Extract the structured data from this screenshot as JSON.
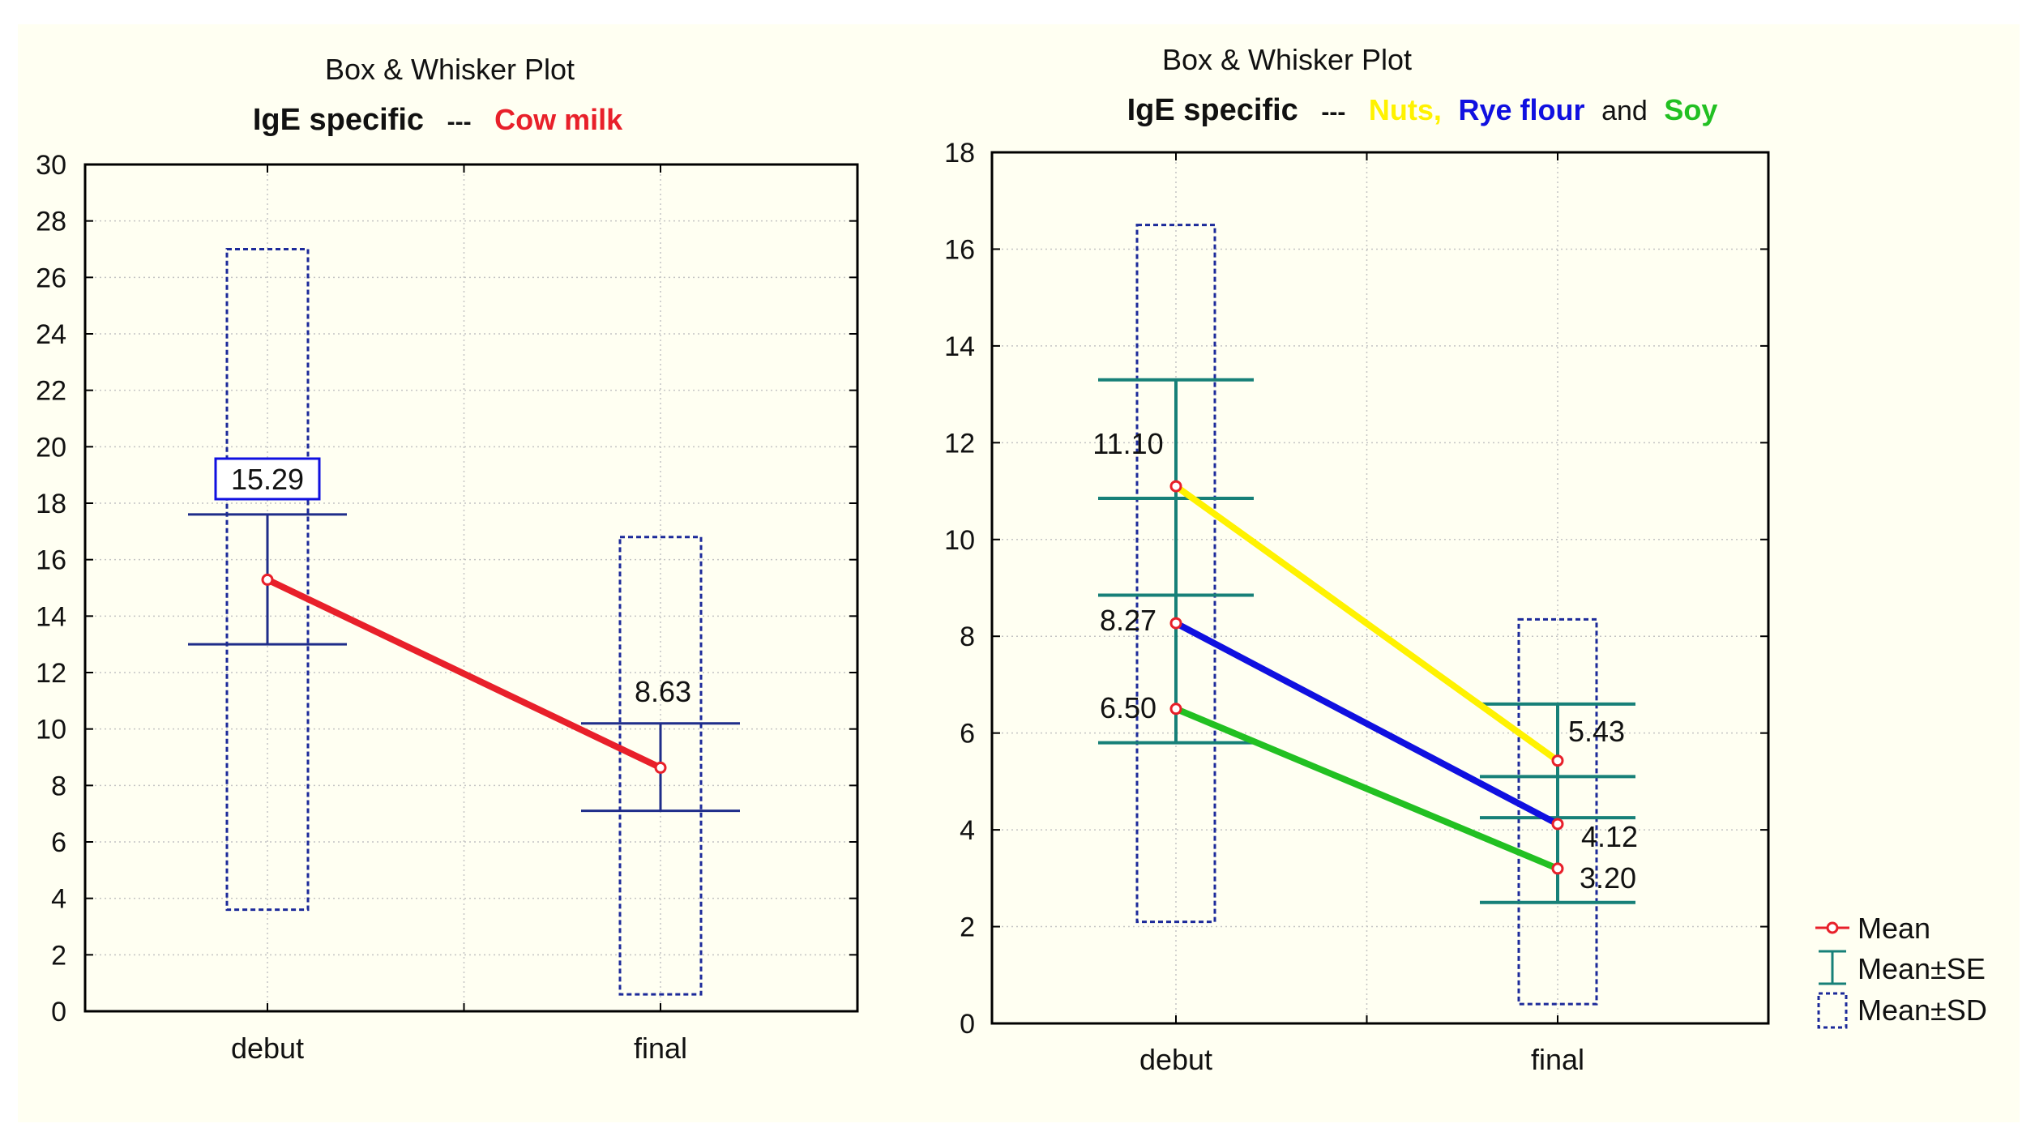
{
  "legend": {
    "mean": "Mean",
    "se": "Mean±SE",
    "sd": "Mean±SD"
  },
  "colors": {
    "background": "#fffff2",
    "frame": "#000000",
    "grid": "#c4c4c4",
    "navy": "#1f2d8a",
    "teal": "#178078",
    "sd_box": "#1c2a9a",
    "cow_milk": "#e8202a",
    "nuts": "#fff200",
    "rye_flour": "#1010e0",
    "soy": "#22c022",
    "mean_marker": "#e8202a"
  },
  "chart_data": [
    {
      "type": "box",
      "title": "Box & Whisker Plot",
      "subtitle": {
        "prefix": "IgE specific",
        "separator": "---",
        "segments": [
          {
            "text": "Cow milk",
            "color": "#e8202a"
          }
        ]
      },
      "categories": [
        "debut",
        "final"
      ],
      "ylim": [
        0,
        30
      ],
      "yticks": [
        0,
        2,
        4,
        6,
        8,
        10,
        12,
        14,
        16,
        18,
        20,
        22,
        24,
        26,
        28,
        30
      ],
      "grid": true,
      "series": [
        {
          "name": "Cow milk",
          "color": "#e8202a",
          "mean": [
            15.29,
            8.63
          ],
          "se_low": [
            13.0,
            7.1
          ],
          "se_high": [
            17.6,
            10.2
          ],
          "sd_low": [
            3.6,
            0.6
          ],
          "sd_high": [
            27.0,
            16.8
          ],
          "labels": [
            "15.29",
            "8.63"
          ]
        }
      ]
    },
    {
      "type": "box",
      "title": "Box & Whisker Plot",
      "subtitle": {
        "prefix": "IgE specific",
        "separator": "---",
        "segments": [
          {
            "text": "Nuts,",
            "color": "#fff200"
          },
          {
            "text": "Rye flour",
            "color": "#1010e0"
          },
          {
            "text": "and",
            "color": "#111111"
          },
          {
            "text": "Soy",
            "color": "#22c022"
          }
        ]
      },
      "categories": [
        "debut",
        "final"
      ],
      "ylim": [
        0,
        18
      ],
      "yticks": [
        0,
        2,
        4,
        6,
        8,
        10,
        12,
        14,
        16,
        18
      ],
      "grid": true,
      "legend_position": "bottom-right",
      "series": [
        {
          "name": "Nuts",
          "color": "#fff200",
          "mean": [
            11.1,
            5.43
          ],
          "labels": [
            "11.10",
            "5.43"
          ]
        },
        {
          "name": "Rye flour",
          "color": "#1010e0",
          "mean": [
            8.27,
            4.12
          ],
          "labels": [
            "8.27",
            "4.12"
          ]
        },
        {
          "name": "Soy",
          "color": "#22c022",
          "mean": [
            6.5,
            3.2
          ],
          "labels": [
            "6.50",
            "3.20"
          ]
        }
      ],
      "se_ranges": {
        "debut": [
          [
            10.85,
            13.3
          ],
          [
            5.8,
            8.85
          ]
        ],
        "final": [
          [
            5.1,
            6.6
          ],
          [
            2.5,
            4.25
          ]
        ]
      },
      "sd_ranges": {
        "debut": [
          2.1,
          16.5
        ],
        "final": [
          0.4,
          8.35
        ]
      }
    }
  ]
}
